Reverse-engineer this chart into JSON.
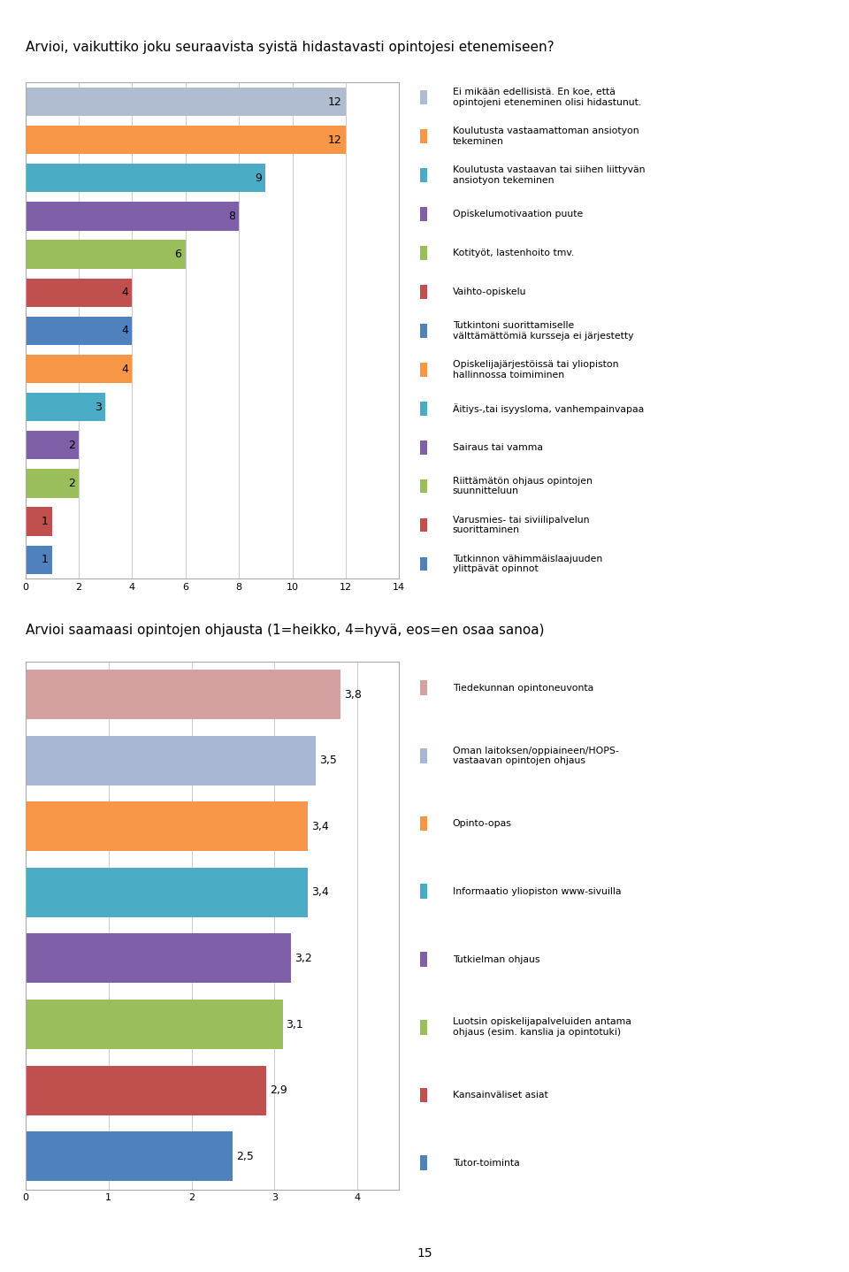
{
  "chart1": {
    "title": "Arvioi, vaikuttiko joku seuraavista syistä hidastavasti opintojesi etenemiseen?",
    "values": [
      12,
      12,
      9,
      8,
      6,
      4,
      4,
      4,
      3,
      2,
      2,
      1,
      1
    ],
    "colors": [
      "#b0bdd0",
      "#f79646",
      "#4bacc6",
      "#7f5fa8",
      "#9abe5c",
      "#c0504d",
      "#4f81bd",
      "#f79646",
      "#4bacc6",
      "#7f5fa8",
      "#9abe5c",
      "#c0504d",
      "#4f81bd"
    ],
    "labels": [
      "Ei mikään edellisistä. En koe, että\nopintojeni eteneminen olisi hidastunut.",
      "Koulutusta vastaamattoman ansiotyon\ntekeminen",
      "Koulutusta vastaavan tai siihen liittyvän\nansiotyon tekeminen",
      "Opiskelumotivaation puute",
      "Kotityöt, lastenhoito tmv.",
      "Vaihto-opiskelu",
      "Tutkintoni suorittamiselle\nvälttämättömiä kursseja ei järjestetty",
      "Opiskelijajärjestöissä tai yliopiston\nhallinnossa toimiminen",
      "Äitiys-,tai isyysloma, vanhempainvapaa",
      "Sairaus tai vamma",
      "Riittämätön ohjaus opintojen\nsuunnitteluun",
      "Varusmies- tai siviilipalvelun\nsuorittaminen",
      "Tutkinnon vähimmäislaajuuden\nylittpävät opinnot"
    ],
    "xlim": [
      0,
      14
    ],
    "xticks": [
      0,
      2,
      4,
      6,
      8,
      10,
      12,
      14
    ]
  },
  "chart2": {
    "title": "Arvioi saamaasi opintojen ohjausta (1=heikko, 4=hyvä, eos=en osaa sanoa)",
    "values": [
      3.8,
      3.5,
      3.4,
      3.4,
      3.2,
      3.1,
      2.9,
      2.5
    ],
    "colors": [
      "#d4a0a0",
      "#a8b8d4",
      "#f79646",
      "#4bacc6",
      "#7f5fa8",
      "#9abe5c",
      "#c0504d",
      "#4f81bd"
    ],
    "labels": [
      "Tiedekunnan opintoneuvonta",
      "Oman laitoksen/oppiaineen/HOPS-\nvastaavan opintojen ohjaus",
      "Opinto-opas",
      "Informaatio yliopiston www-sivuilla",
      "Tutkielman ohjaus",
      "Luotsin opiskelijapalveluiden antama\nohjaus (esim. kanslia ja opintotuki)",
      "Kansainväliset asiat",
      "Tutor-toiminta"
    ],
    "xlim": [
      0,
      4.5
    ],
    "xticks": [
      0,
      1,
      2,
      3,
      4
    ]
  },
  "page_number": "15",
  "bg_color": "#ffffff",
  "box_color": "#aaaaaa",
  "grid_color": "#cccccc"
}
